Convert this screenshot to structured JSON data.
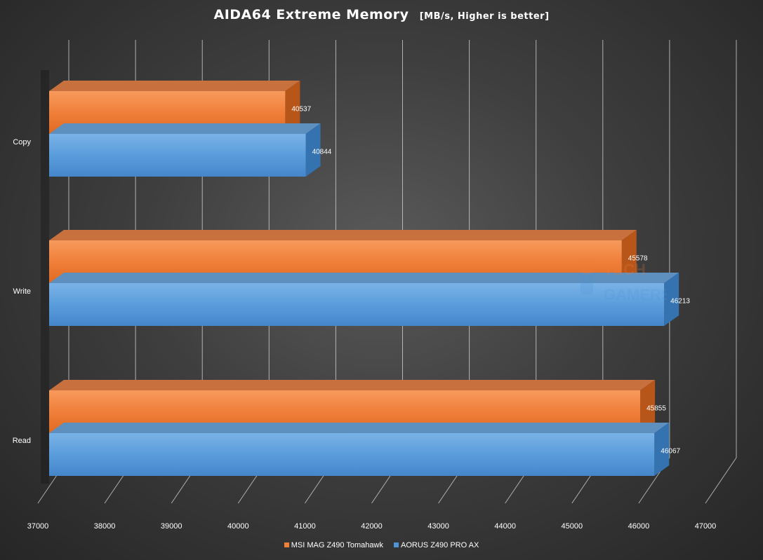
{
  "chart_data": {
    "type": "bar",
    "orientation": "horizontal",
    "title": "AIDA64 Extreme  Memory",
    "subtitle": "[MB/s, Higher is better]",
    "categories": [
      "Copy",
      "Write",
      "Read"
    ],
    "series": [
      {
        "name": "MSI MAG Z490 Tomahawk",
        "values": [
          40537,
          45578,
          45855
        ],
        "color": "#f07f3a"
      },
      {
        "name": "AORUS Z490 PRO AX",
        "values": [
          40844,
          46213,
          46067
        ],
        "color": "#4f95d6"
      }
    ],
    "xlim": [
      37000,
      47000
    ],
    "x_ticks": [
      "37000",
      "38000",
      "39000",
      "40000",
      "41000",
      "42000",
      "43000",
      "44000",
      "45000",
      "46000",
      "47000"
    ],
    "grid": true,
    "legend_position": "bottom",
    "style": "3d"
  },
  "watermark": {
    "line1": "TECH",
    "line2": "GAMERS"
  }
}
